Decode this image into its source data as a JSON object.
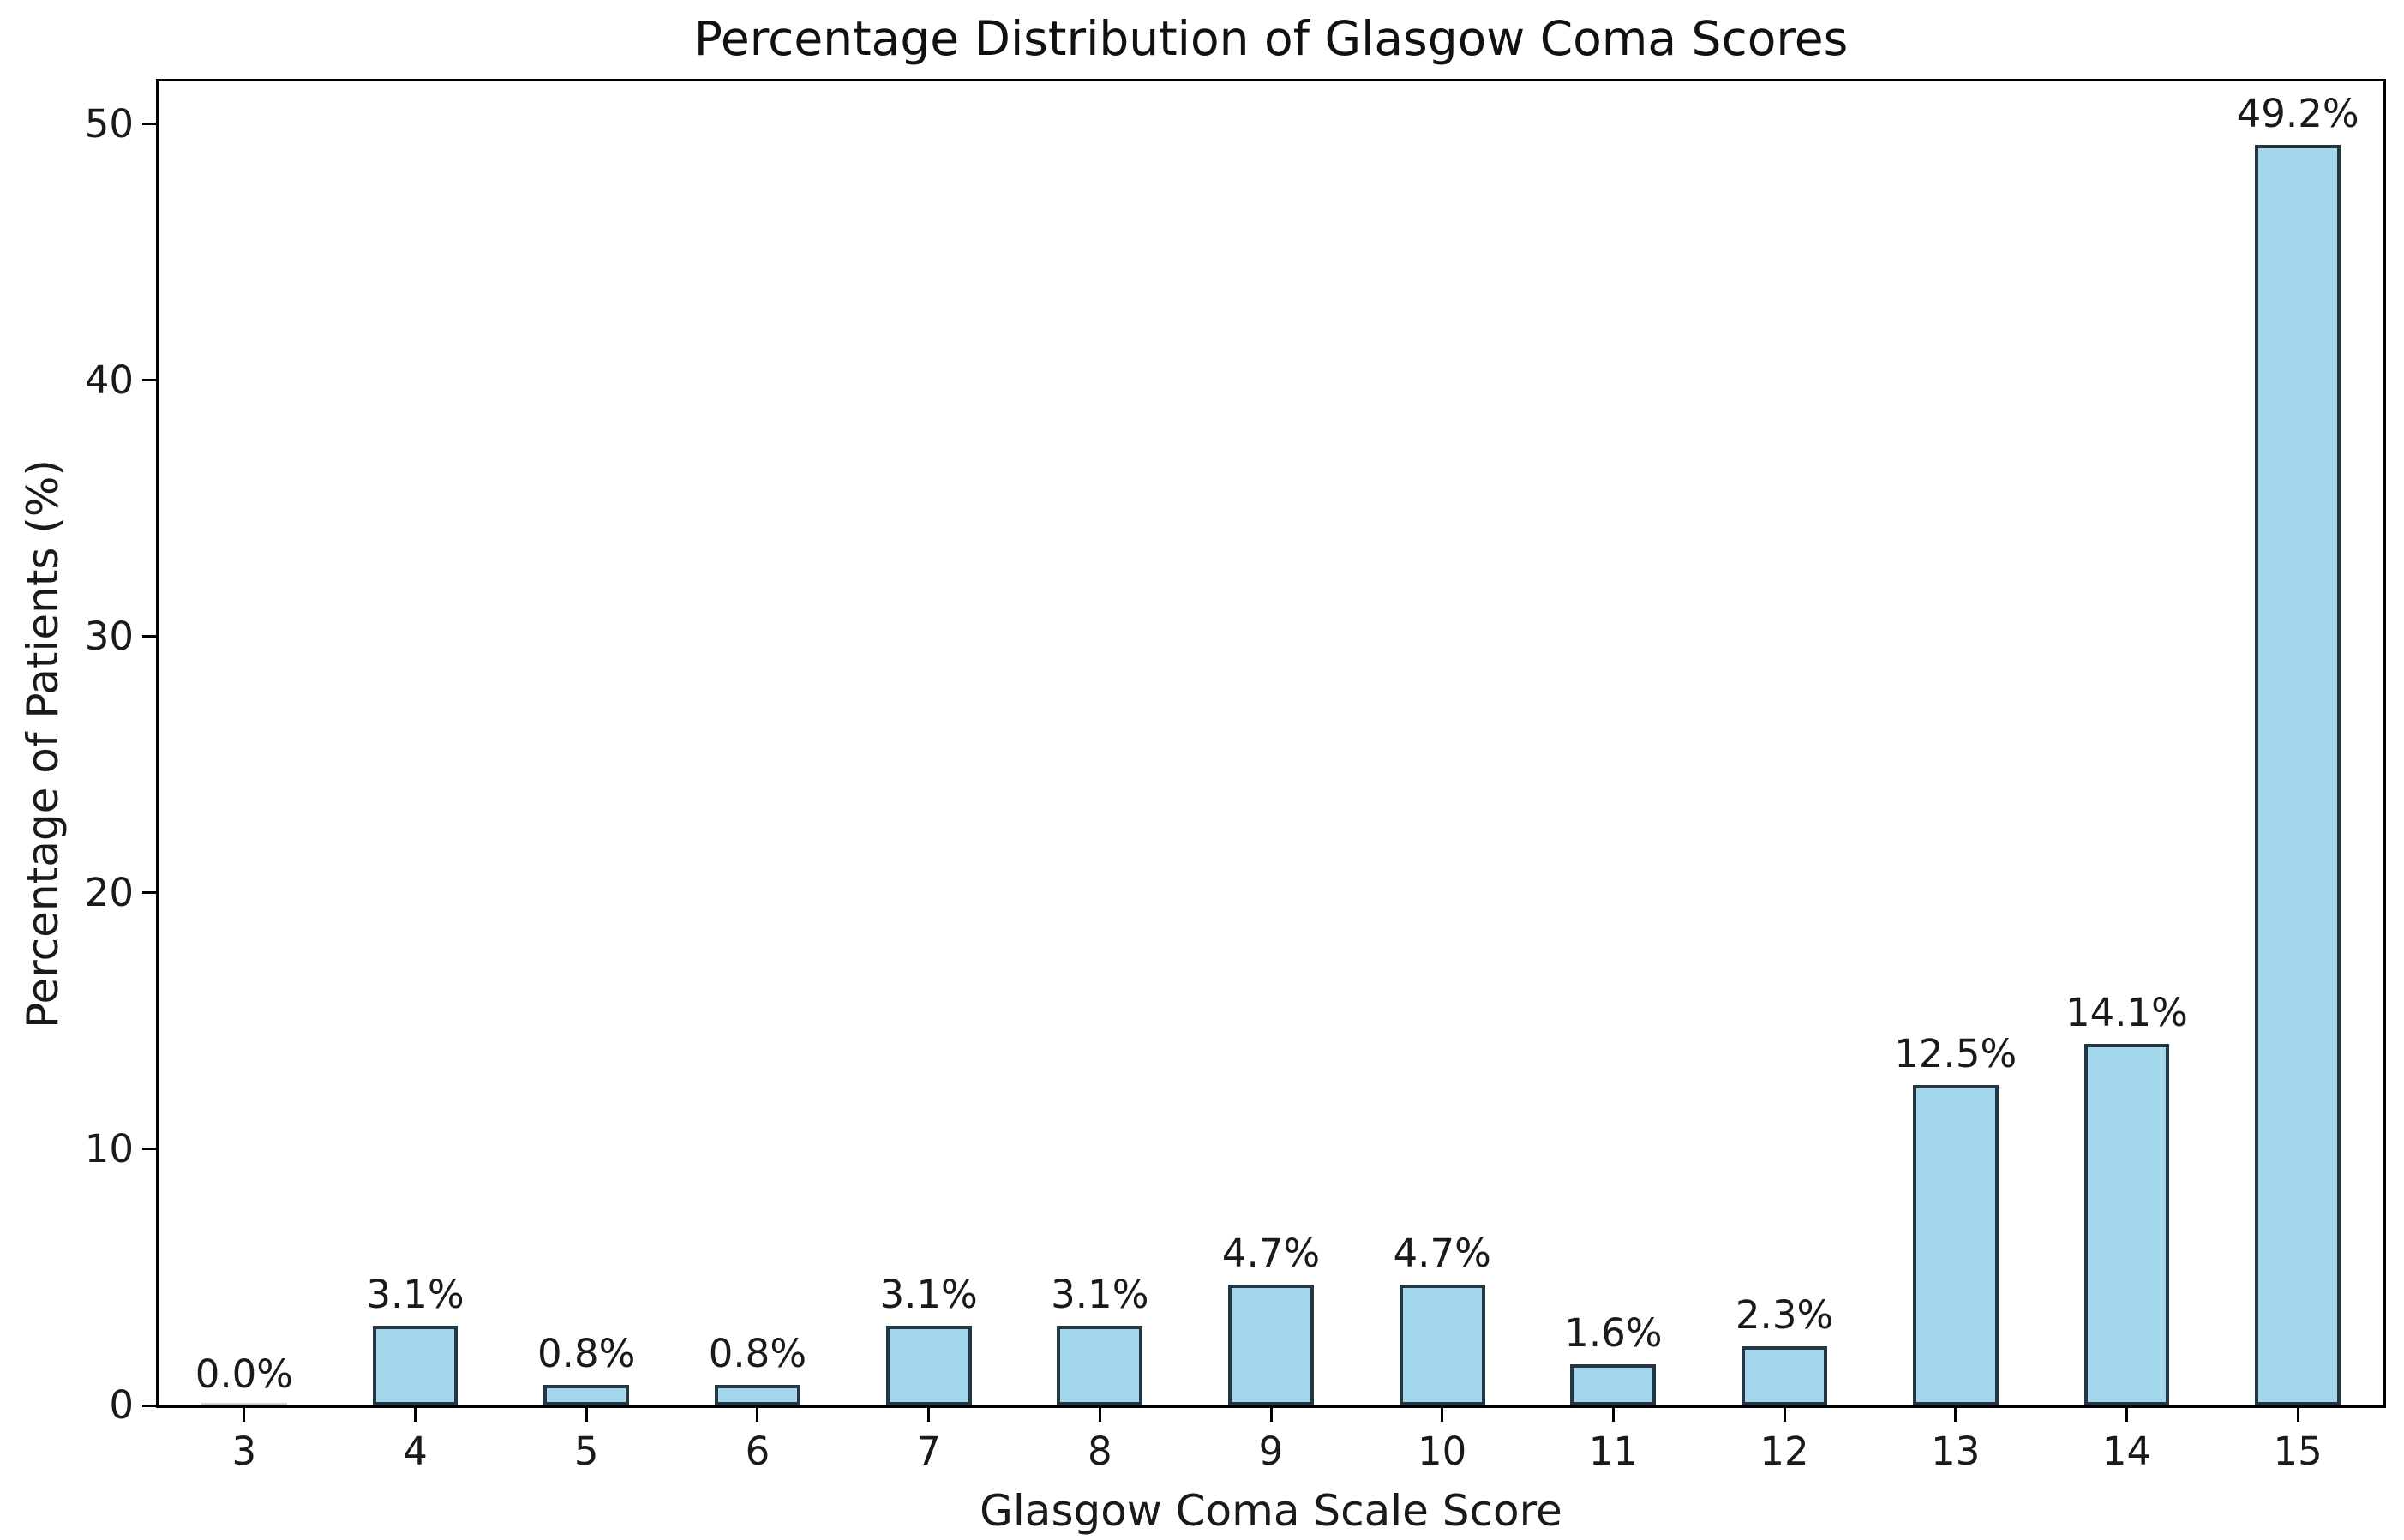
{
  "chart_data": {
    "type": "bar",
    "title": "Percentage Distribution of Glasgow Coma Scores",
    "xlabel": "Glasgow Coma Scale Score",
    "ylabel": "Percentage of Patients (%)",
    "categories": [
      "3",
      "4",
      "5",
      "6",
      "7",
      "8",
      "9",
      "10",
      "11",
      "12",
      "13",
      "14",
      "15"
    ],
    "values": [
      0.0,
      3.1,
      0.8,
      0.8,
      3.1,
      3.1,
      4.7,
      4.7,
      1.6,
      2.3,
      12.5,
      14.1,
      49.2
    ],
    "bar_labels": [
      "0.0%",
      "3.1%",
      "0.8%",
      "0.8%",
      "3.1%",
      "3.1%",
      "4.7%",
      "4.7%",
      "1.6%",
      "2.3%",
      "12.5%",
      "14.1%",
      "49.2%"
    ],
    "yticks": [
      0,
      10,
      20,
      30,
      40,
      50
    ],
    "ylim": [
      0,
      51.66
    ],
    "grid": false,
    "legend": null,
    "bar_width_fraction": 0.5,
    "bar_color": "#a3d8ec",
    "bar_edge_color": "#243642",
    "zero_bar_color": "#c9d2d8",
    "spine_color": "#000000",
    "text_color": "#1a1a1a",
    "background_color": "#ffffff"
  }
}
